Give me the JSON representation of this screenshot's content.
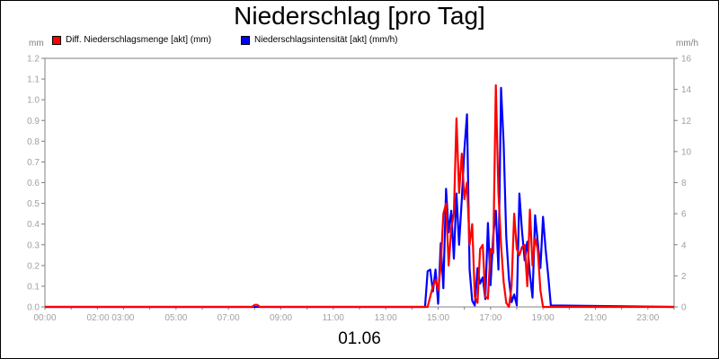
{
  "title": "Niederschlag [pro Tag]",
  "date_label": "01.06",
  "left_unit": "mm",
  "right_unit": "mm/h",
  "legend": [
    {
      "label": "Diff. Niederschlagsmenge [akt] (mm)",
      "color": "#ff0000"
    },
    {
      "label": "Niederschlagsintensität [akt] (mm/h)",
      "color": "#0000ff"
    }
  ],
  "chart_data": {
    "type": "line",
    "title": "Niederschlag [pro Tag]",
    "x_ticks": [
      "00:00",
      "02:00 03:00",
      "05:00",
      "07:00",
      "09:00",
      "11:00",
      "13:00",
      "15:00",
      "17:00",
      "19:00",
      "21:00",
      "23:00"
    ],
    "y_left_ticks": [
      "0.0",
      "0.1",
      "0.2",
      "0.3",
      "0.4",
      "0.5",
      "0.6",
      "0.7",
      "0.8",
      "0.9",
      "1.0",
      "1.1",
      "1.2"
    ],
    "y_right_ticks": [
      "0",
      "2",
      "4",
      "6",
      "8",
      "10",
      "12",
      "14",
      "16"
    ],
    "xlim_hours": [
      0,
      24
    ],
    "ylim_left": [
      0,
      1.2
    ],
    "ylim_right": [
      0,
      16
    ],
    "grid": false,
    "series": [
      {
        "name": "Diff. Niederschlagsmenge [akt] (mm)",
        "axis": "left",
        "color": "#ff0000",
        "x": [
          0,
          7.9,
          8.0,
          8.1,
          8.2,
          14.6,
          14.7,
          14.8,
          14.9,
          15.0,
          15.1,
          15.2,
          15.3,
          15.4,
          15.5,
          15.6,
          15.7,
          15.8,
          15.9,
          16.0,
          16.1,
          16.2,
          16.3,
          16.4,
          16.5,
          16.6,
          16.7,
          16.8,
          16.9,
          17.0,
          17.1,
          17.2,
          17.3,
          17.4,
          17.5,
          17.6,
          17.7,
          17.8,
          17.9,
          18.0,
          18.1,
          18.2,
          18.3,
          18.4,
          18.5,
          18.6,
          18.7,
          18.8,
          18.9,
          19.0,
          19.1,
          19.2,
          19.3,
          19.4,
          24
        ],
        "y": [
          0,
          0,
          0.01,
          0.01,
          0,
          0,
          0.05,
          0.1,
          0.13,
          0.08,
          0.2,
          0.45,
          0.5,
          0.2,
          0.38,
          0.45,
          0.91,
          0.55,
          0.74,
          0.52,
          0.6,
          0.3,
          0.4,
          0.05,
          0.02,
          0.28,
          0.3,
          0.05,
          0.04,
          0.28,
          0.26,
          1.07,
          0.55,
          0.3,
          0.12,
          0.02,
          0.0,
          0.1,
          0.45,
          0.28,
          0.25,
          0.29,
          0.3,
          0.1,
          0.47,
          0.2,
          0.33,
          0.28,
          0.08,
          0.0,
          0,
          0,
          0,
          0,
          0
        ]
      },
      {
        "name": "Niederschlagsintensität [akt] (mm/h)",
        "axis": "right",
        "color": "#0000ff",
        "x": [
          0,
          14.5,
          14.6,
          14.7,
          14.8,
          14.9,
          15.0,
          15.1,
          15.2,
          15.3,
          15.4,
          15.5,
          15.6,
          15.7,
          15.8,
          15.9,
          16.0,
          16.1,
          16.2,
          16.3,
          16.4,
          16.5,
          16.6,
          16.7,
          16.8,
          16.9,
          17.0,
          17.1,
          17.2,
          17.3,
          17.4,
          17.5,
          17.6,
          17.7,
          17.8,
          17.9,
          18.0,
          18.1,
          18.2,
          18.3,
          18.4,
          18.5,
          18.6,
          18.7,
          18.8,
          18.9,
          19.0,
          19.1,
          19.2,
          19.3,
          24
        ],
        "y": [
          0,
          0,
          2.3,
          2.4,
          1.0,
          2.4,
          0.2,
          4.1,
          1.2,
          7.6,
          4.8,
          6.2,
          3.1,
          7.3,
          4.0,
          6.9,
          10.1,
          12.4,
          2.4,
          0.4,
          0.1,
          2.5,
          1.5,
          1.9,
          0.5,
          5.4,
          1.4,
          4.6,
          6.2,
          2.4,
          14.1,
          10.5,
          4.5,
          1.8,
          0.3,
          0.8,
          0.1,
          7.3,
          4.9,
          3.0,
          4.2,
          2.1,
          0.6,
          5.9,
          4.2,
          2.5,
          5.8,
          3.7,
          2.0,
          0.1,
          0
        ]
      }
    ]
  }
}
